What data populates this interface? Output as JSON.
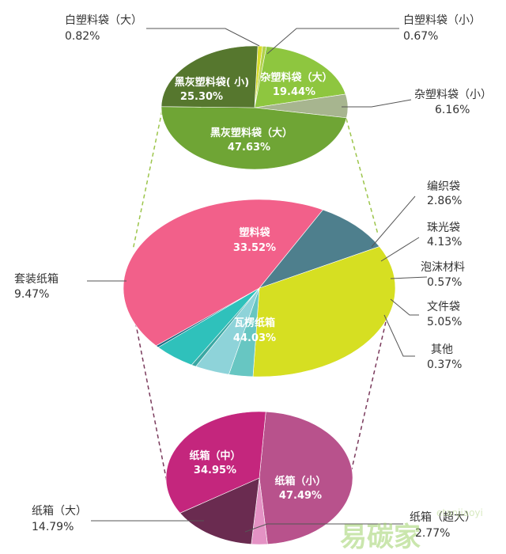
{
  "chart_data": [
    {
      "type": "pie",
      "slices": [
        {
          "label": "白塑料袋（大）",
          "value": 0.82,
          "value_text": "0.82%",
          "color": "#d8dc2c"
        },
        {
          "label": "白塑料袋（小）",
          "value": 0.67,
          "value_text": "0.67%",
          "color": "#b3d24b"
        },
        {
          "label": "杂塑料袋（大）",
          "value": 19.44,
          "value_text": "19.44%",
          "color": "#8ec63f"
        },
        {
          "label": "杂塑料袋（小）",
          "value": 6.16,
          "value_text": "6.16%",
          "color": "#a7b58f"
        },
        {
          "label": "黑灰塑料袋（大）",
          "value": 47.63,
          "value_text": "47.63%",
          "color": "#6fa535"
        },
        {
          "label": "黑灰塑料袋( 小)",
          "value": 25.3,
          "value_text": "25.30%",
          "color": "#56772e"
        }
      ]
    },
    {
      "type": "pie",
      "slices": [
        {
          "label": "塑料袋",
          "value": 33.52,
          "value_text": "33.52%",
          "color": "#d6df22"
        },
        {
          "label": "编织袋",
          "value": 2.86,
          "value_text": "2.86%",
          "color": "#67c6c2"
        },
        {
          "label": "珠光袋",
          "value": 4.13,
          "value_text": "4.13%",
          "color": "#8ed3d9"
        },
        {
          "label": "泡沫材料",
          "value": 0.57,
          "value_text": "0.57%",
          "color": "#3aa7a3"
        },
        {
          "label": "文件袋",
          "value": 5.05,
          "value_text": "5.05%",
          "color": "#2fc1bb"
        },
        {
          "label": "其他",
          "value": 0.37,
          "value_text": "0.37%",
          "color": "#1e6d84"
        },
        {
          "label": "瓦楞纸箱",
          "value": 44.03,
          "value_text": "44.03%",
          "color": "#f2608a"
        },
        {
          "label": "套装纸箱",
          "value": 9.47,
          "value_text": "9.47%",
          "color": "#4e7f8d"
        }
      ]
    },
    {
      "type": "pie",
      "slices": [
        {
          "label": "纸箱（小）",
          "value": 47.49,
          "value_text": "47.49%",
          "color": "#b8528c"
        },
        {
          "label": "纸箱（超大）",
          "value": 2.77,
          "value_text": "2.77%",
          "color": "#e492c4"
        },
        {
          "label": "纸箱（大）",
          "value": 14.79,
          "value_text": "14.79%",
          "color": "#6a2b50"
        },
        {
          "label": "纸箱（中）",
          "value": 34.95,
          "value_text": "34.95%",
          "color": "#c4267d"
        }
      ]
    }
  ],
  "watermark": {
    "main": "易碳家",
    "sub": "etanjiaoyi"
  }
}
